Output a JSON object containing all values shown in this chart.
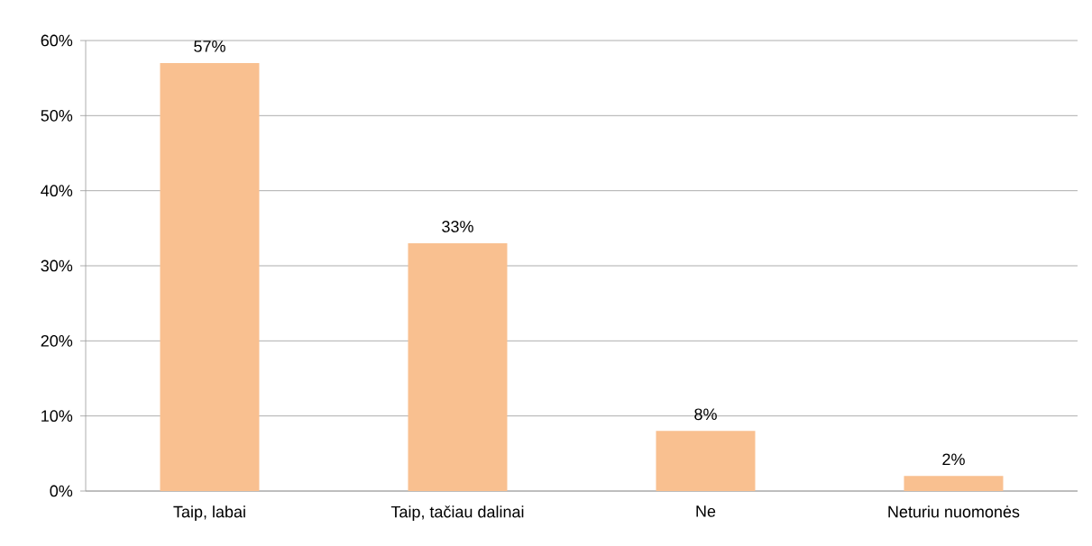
{
  "chart_data": {
    "type": "bar",
    "categories": [
      "Taip, labai",
      "Taip, tačiau dalinai",
      "Ne",
      "Neturiu nuomonės"
    ],
    "values": [
      57,
      33,
      8,
      2
    ],
    "value_labels": [
      "57%",
      "33%",
      "8%",
      "2%"
    ],
    "color": "#f9c090",
    "ylim": [
      0,
      60
    ],
    "yticks": [
      {
        "value": 0,
        "label": "0%"
      },
      {
        "value": 10,
        "label": "10%"
      },
      {
        "value": 20,
        "label": "20%"
      },
      {
        "value": 30,
        "label": "30%"
      },
      {
        "value": 40,
        "label": "40%"
      },
      {
        "value": 50,
        "label": "50%"
      },
      {
        "value": 60,
        "label": "60%"
      }
    ],
    "grid": "y"
  }
}
